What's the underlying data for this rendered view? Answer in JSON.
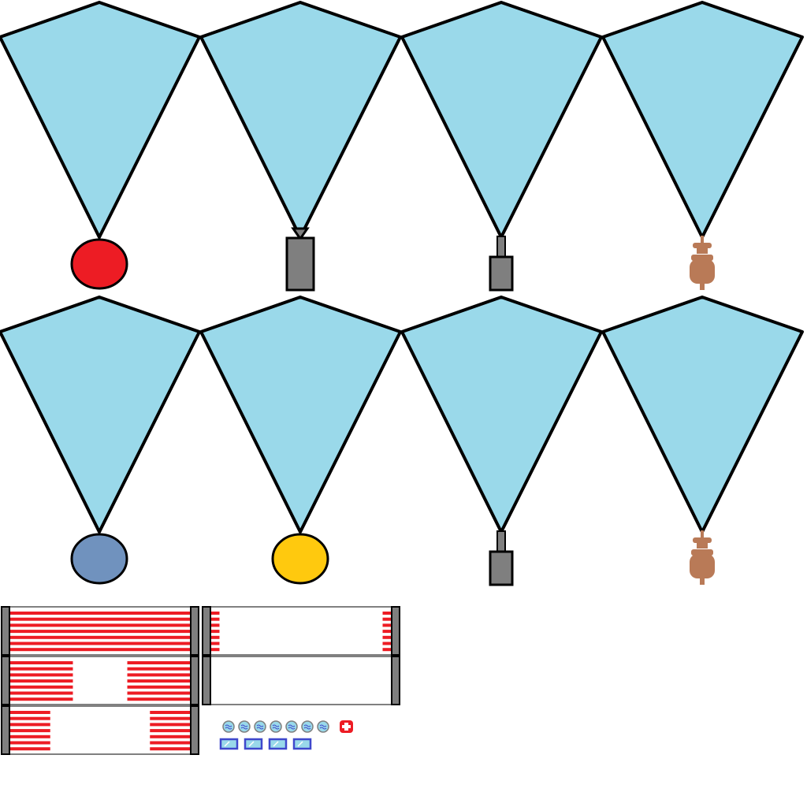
{
  "palette": {
    "chute": "#9ad9ea",
    "outline": "#000000",
    "crate_gray": "#7f7f7f",
    "bomb_red": "#ed1c24",
    "bomb_blue": "#7092be",
    "bomb_yellow": "#ffc90e",
    "bear_brown": "#b97a57",
    "stripe_red": "#ed1c24",
    "post_gray": "#7f7f7f",
    "bubble_blue": "#99d9ea",
    "panel_blue": "#3f48cc",
    "medkit_red": "#ed1c24"
  },
  "sprites": {
    "parachutes": [
      {
        "payload": "red-bomb",
        "icon": "red-ball"
      },
      {
        "payload": "gray-crate-narrow-hook",
        "icon": "gray-crate"
      },
      {
        "payload": "gray-crate-stem",
        "icon": "gray-crate"
      },
      {
        "payload": "brown-bear",
        "icon": "teddy-bear"
      },
      {
        "payload": "blue-bomb",
        "icon": "blue-ball"
      },
      {
        "payload": "yellow-bomb",
        "icon": "yellow-ball"
      },
      {
        "payload": "gray-crate-stem",
        "icon": "gray-crate"
      },
      {
        "payload": "brown-bear",
        "icon": "teddy-bear"
      }
    ],
    "fences": [
      {
        "variant": "full-stripes",
        "fill": 1.0
      },
      {
        "variant": "edge-stripes",
        "fill": 0.1
      },
      {
        "variant": "split-stripes",
        "fill": 0.7
      },
      {
        "variant": "empty-frame",
        "fill": 0.0
      },
      {
        "variant": "short-stripes",
        "fill": 0.45
      }
    ],
    "bubbles": [
      {
        "icon": "water-bubble-icon"
      },
      {
        "icon": "water-bubble-icon"
      },
      {
        "icon": "water-bubble-icon"
      },
      {
        "icon": "water-bubble-icon"
      },
      {
        "icon": "water-bubble-icon"
      },
      {
        "icon": "water-bubble-icon"
      },
      {
        "icon": "water-bubble-icon"
      }
    ],
    "panels": [
      {
        "icon": "glass-panel-icon"
      },
      {
        "icon": "glass-panel-icon"
      },
      {
        "icon": "glass-panel-icon"
      },
      {
        "icon": "glass-panel-icon"
      }
    ],
    "medkit": {
      "icon": "medkit-icon"
    }
  }
}
